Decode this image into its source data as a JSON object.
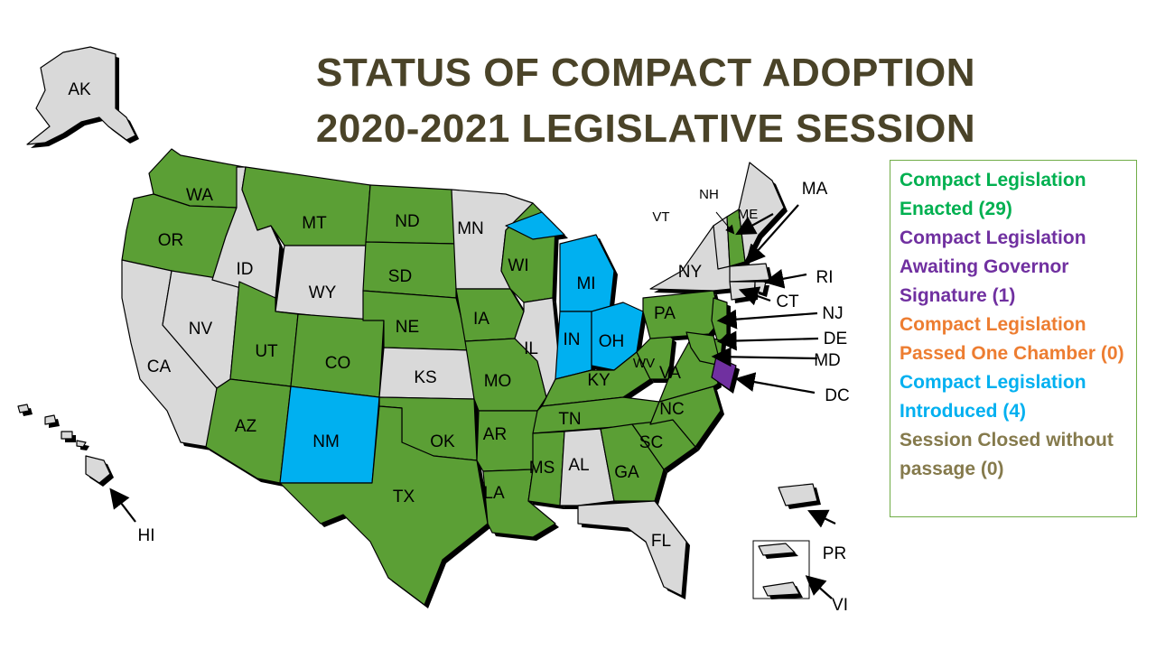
{
  "title": {
    "line1": "STATUS OF COMPACT ADOPTION",
    "line2": "2020-2021 LEGISLATIVE SESSION"
  },
  "colors": {
    "enacted": "#5b9f35",
    "awaiting": "#7030a0",
    "passed_one": "#ed7d31",
    "introduced": "#00b0f0",
    "closed": "#d9d9d9",
    "title": "#4a4328"
  },
  "legend": [
    {
      "text": "Compact Legislation Enacted (29)",
      "color": "#00b050"
    },
    {
      "text": "Compact Legislation Awaiting Governor Signature (1)",
      "color": "#7030a0"
    },
    {
      "text": "Compact Legislation Passed One Chamber (0)",
      "color": "#ed7d31"
    },
    {
      "text": "Compact Legislation Introduced (4)",
      "color": "#00b0f0"
    },
    {
      "text": "Session Closed without passage (0)",
      "color": "#857a4c"
    }
  ],
  "states": {
    "WA": "enacted",
    "OR": "enacted",
    "CA": "closed",
    "NV": "closed",
    "ID": "closed",
    "MT": "enacted",
    "WY": "closed",
    "UT": "enacted",
    "AZ": "enacted",
    "CO": "enacted",
    "NM": "introduced",
    "ND": "enacted",
    "SD": "enacted",
    "NE": "enacted",
    "KS": "closed",
    "OK": "enacted",
    "TX": "enacted",
    "MN": "closed",
    "IA": "enacted",
    "MO": "enacted",
    "AR": "enacted",
    "LA": "enacted",
    "WI": "enacted",
    "IL": "closed",
    "MI": "introduced",
    "IN": "introduced",
    "OH": "introduced",
    "KY": "enacted",
    "TN": "enacted",
    "MS": "enacted",
    "AL": "closed",
    "GA": "enacted",
    "FL": "closed",
    "SC": "enacted",
    "NC": "enacted",
    "VA": "enacted",
    "WV": "enacted",
    "PA": "enacted",
    "NY": "closed",
    "VT": "closed",
    "NH": "enacted",
    "ME": "closed",
    "MA": "closed",
    "RI": "closed",
    "CT": "closed",
    "NJ": "enacted",
    "DE": "enacted",
    "MD": "enacted",
    "DC": "awaiting",
    "AK": "closed",
    "HI": "closed",
    "PR": "closed",
    "VI": "closed"
  },
  "labels": {
    "AK": "AK",
    "WA": "WA",
    "OR": "OR",
    "CA": "CA",
    "NV": "NV",
    "ID": "ID",
    "MT": "MT",
    "WY": "WY",
    "UT": "UT",
    "AZ": "AZ",
    "CO": "CO",
    "NM": "NM",
    "ND": "ND",
    "SD": "SD",
    "NE": "NE",
    "KS": "KS",
    "OK": "OK",
    "TX": "TX",
    "MN": "MN",
    "IA": "IA",
    "MO": "MO",
    "AR": "AR",
    "LA": "LA",
    "WI": "WI",
    "IL": "IL",
    "MI": "MI",
    "IN": "IN",
    "OH": "OH",
    "KY": "KY",
    "TN": "TN",
    "MS": "MS",
    "AL": "AL",
    "GA": "GA",
    "FL": "FL",
    "SC": "SC",
    "NC": "NC",
    "VA": "VA",
    "WV": "WV",
    "PA": "PA",
    "NY": "NY",
    "VT": "VT",
    "NH": "NH",
    "ME": "ME",
    "MA": "MA",
    "RI": "RI",
    "CT": "CT",
    "NJ": "NJ",
    "DE": "DE",
    "MD": "MD",
    "DC": "DC",
    "HI": "HI",
    "PR": "PR",
    "VI": "VI"
  }
}
